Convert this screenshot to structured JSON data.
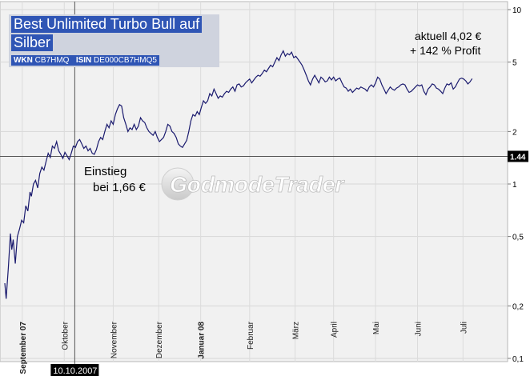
{
  "header": {
    "title_line1": "Best Unlimited Turbo Bull auf",
    "title_line2": "Silber",
    "wkn_label": "WKN",
    "wkn_value": "CB7HMQ",
    "isin_label": "ISIN",
    "isin_value": "DE000CB7HMQ5"
  },
  "annotations": {
    "current_line1": "aktuell 4,02 €",
    "current_line2": "+ 142 % Profit",
    "entry_line1": "Einstieg",
    "entry_line2": "bei 1,66 €"
  },
  "watermark": "GodmodeTrader",
  "colors": {
    "line": "#1a1a6e",
    "plot_bg": "#f1f1f1",
    "title_bg": "#2f55b5",
    "marker_bg": "#000000"
  },
  "chart_data": {
    "type": "line",
    "y_scale": "log",
    "ylim": [
      0.1,
      10
    ],
    "y_ticks": [
      {
        "value": 10,
        "label": "10"
      },
      {
        "value": 5,
        "label": "5"
      },
      {
        "value": 2,
        "label": "2"
      },
      {
        "value": 1,
        "label": "1"
      },
      {
        "value": 0.5,
        "label": "0,5"
      },
      {
        "value": 0.2,
        "label": "0,2"
      },
      {
        "value": 0.1,
        "label": "0,1"
      }
    ],
    "x_ticks": [
      {
        "t": 5,
        "label": "September 07",
        "bold": true
      },
      {
        "t": 17,
        "label": "Oktober",
        "bold": false
      },
      {
        "t": 31,
        "label": "November",
        "bold": false
      },
      {
        "t": 44,
        "label": "Dezember",
        "bold": false
      },
      {
        "t": 56,
        "label": "Januar 08",
        "bold": true
      },
      {
        "t": 70,
        "label": "Februar",
        "bold": false
      },
      {
        "t": 83,
        "label": "März",
        "bold": false
      },
      {
        "t": 94,
        "label": "April",
        "bold": false
      },
      {
        "t": 106,
        "label": "Mai",
        "bold": false
      },
      {
        "t": 118,
        "label": "Juni",
        "bold": false
      },
      {
        "t": 131,
        "label": "Juli",
        "bold": false
      }
    ],
    "x_range": [
      0,
      141
    ],
    "marker_date": {
      "t": 20,
      "label": "10.10.2007"
    },
    "marker_price": {
      "value": 1.44,
      "label": "1.44"
    },
    "series": [
      {
        "values": [
          [
            0,
            0.27
          ],
          [
            0.4,
            0.22
          ],
          [
            1,
            0.33
          ],
          [
            1.6,
            0.52
          ],
          [
            2,
            0.42
          ],
          [
            2.4,
            0.48
          ],
          [
            3,
            0.35
          ],
          [
            3.6,
            0.5
          ],
          [
            4.2,
            0.55
          ],
          [
            4.8,
            0.62
          ],
          [
            5.4,
            0.6
          ],
          [
            6,
            0.75
          ],
          [
            6.6,
            0.7
          ],
          [
            7.2,
            0.9
          ],
          [
            7.6,
            0.85
          ],
          [
            8.2,
            1.0
          ],
          [
            8.8,
            1.05
          ],
          [
            9.4,
            0.95
          ],
          [
            10,
            1.15
          ],
          [
            10.6,
            1.25
          ],
          [
            11.2,
            1.2
          ],
          [
            11.8,
            1.35
          ],
          [
            12.4,
            1.5
          ],
          [
            13,
            1.42
          ],
          [
            13.6,
            1.65
          ],
          [
            14.2,
            1.6
          ],
          [
            14.8,
            1.75
          ],
          [
            15.4,
            1.55
          ],
          [
            16,
            1.48
          ],
          [
            16.6,
            1.4
          ],
          [
            17.2,
            1.52
          ],
          [
            17.8,
            1.45
          ],
          [
            18.4,
            1.38
          ],
          [
            19,
            1.5
          ],
          [
            19.6,
            1.65
          ],
          [
            20.2,
            1.62
          ],
          [
            20.8,
            1.75
          ],
          [
            21.4,
            1.8
          ],
          [
            22,
            1.7
          ],
          [
            22.6,
            1.6
          ],
          [
            23.2,
            1.65
          ],
          [
            23.8,
            1.55
          ],
          [
            24.4,
            1.6
          ],
          [
            25,
            1.5
          ],
          [
            25.6,
            1.48
          ],
          [
            26.2,
            1.58
          ],
          [
            26.8,
            1.75
          ],
          [
            27.4,
            1.85
          ],
          [
            28,
            1.8
          ],
          [
            28.6,
            2.0
          ],
          [
            29.2,
            2.2
          ],
          [
            29.8,
            2.1
          ],
          [
            30.4,
            2.3
          ],
          [
            31,
            2.2
          ],
          [
            31.6,
            2.5
          ],
          [
            32.2,
            2.7
          ],
          [
            32.8,
            2.85
          ],
          [
            33.4,
            2.8
          ],
          [
            34,
            2.4
          ],
          [
            34.6,
            2.2
          ],
          [
            35.2,
            2.0
          ],
          [
            35.8,
            2.1
          ],
          [
            36.4,
            2.05
          ],
          [
            37,
            2.2
          ],
          [
            37.6,
            2.05
          ],
          [
            38.2,
            2.15
          ],
          [
            38.8,
            2.4
          ],
          [
            39.4,
            2.3
          ],
          [
            40,
            2.25
          ],
          [
            40.6,
            2.1
          ],
          [
            41.2,
            2.0
          ],
          [
            41.8,
            1.95
          ],
          [
            42.4,
            1.9
          ],
          [
            43,
            2.0
          ],
          [
            43.6,
            1.85
          ],
          [
            44.2,
            1.75
          ],
          [
            44.8,
            1.8
          ],
          [
            45.4,
            1.85
          ],
          [
            46,
            2.0
          ],
          [
            46.6,
            2.2
          ],
          [
            47.2,
            2.15
          ],
          [
            47.8,
            2.0
          ],
          [
            48.4,
            1.95
          ],
          [
            49,
            1.85
          ],
          [
            49.6,
            1.7
          ],
          [
            50.2,
            1.65
          ],
          [
            50.8,
            1.62
          ],
          [
            51.4,
            1.7
          ],
          [
            52,
            1.78
          ],
          [
            52.6,
            2.0
          ],
          [
            53.2,
            2.3
          ],
          [
            53.8,
            2.5
          ],
          [
            54.4,
            2.45
          ],
          [
            55,
            2.6
          ],
          [
            55.6,
            2.5
          ],
          [
            56.2,
            2.75
          ],
          [
            56.8,
            3.0
          ],
          [
            57.4,
            2.9
          ],
          [
            58,
            3.0
          ],
          [
            58.6,
            3.3
          ],
          [
            59.2,
            3.2
          ],
          [
            59.8,
            3.5
          ],
          [
            60.4,
            3.3
          ],
          [
            61,
            3.1
          ],
          [
            61.6,
            3.2
          ],
          [
            62.2,
            3.15
          ],
          [
            62.8,
            3.3
          ],
          [
            63.4,
            3.4
          ],
          [
            64,
            3.35
          ],
          [
            64.6,
            3.5
          ],
          [
            65.2,
            3.6
          ],
          [
            65.8,
            3.4
          ],
          [
            66.4,
            3.7
          ],
          [
            67,
            3.75
          ],
          [
            67.6,
            3.6
          ],
          [
            68.2,
            3.65
          ],
          [
            68.8,
            3.8
          ],
          [
            69.4,
            3.9
          ],
          [
            70,
            4.0
          ],
          [
            70.6,
            3.8
          ],
          [
            71.2,
            3.95
          ],
          [
            71.8,
            4.1
          ],
          [
            72.4,
            4.2
          ],
          [
            73,
            4.15
          ],
          [
            73.6,
            4.3
          ],
          [
            74.2,
            4.5
          ],
          [
            74.8,
            4.4
          ],
          [
            75.4,
            4.6
          ],
          [
            76,
            4.8
          ],
          [
            76.6,
            4.7
          ],
          [
            77.2,
            5.0
          ],
          [
            77.8,
            5.3
          ],
          [
            78.4,
            5.1
          ],
          [
            79,
            5.5
          ],
          [
            79.6,
            5.8
          ],
          [
            80.2,
            5.4
          ],
          [
            80.8,
            5.6
          ],
          [
            81.4,
            5.5
          ],
          [
            82,
            5.7
          ],
          [
            82.6,
            5.3
          ],
          [
            83.2,
            5.4
          ],
          [
            83.8,
            5.2
          ],
          [
            84.4,
            5.0
          ],
          [
            85,
            4.8
          ],
          [
            85.6,
            4.5
          ],
          [
            86.2,
            4.2
          ],
          [
            86.8,
            3.9
          ],
          [
            87.4,
            3.7
          ],
          [
            88,
            4.0
          ],
          [
            88.6,
            4.2
          ],
          [
            89.2,
            4.0
          ],
          [
            89.8,
            3.8
          ],
          [
            90.4,
            4.1
          ],
          [
            91,
            4.0
          ],
          [
            91.6,
            3.85
          ],
          [
            92.2,
            3.9
          ],
          [
            92.8,
            4.1
          ],
          [
            93.4,
            3.95
          ],
          [
            94,
            4.1
          ],
          [
            94.6,
            3.9
          ],
          [
            95.2,
            4.0
          ],
          [
            95.8,
            4.05
          ],
          [
            96.4,
            3.8
          ],
          [
            97,
            3.6
          ],
          [
            97.6,
            3.55
          ],
          [
            98.2,
            3.4
          ],
          [
            98.8,
            3.5
          ],
          [
            99.4,
            3.35
          ],
          [
            100,
            3.45
          ],
          [
            100.6,
            3.55
          ],
          [
            101.2,
            3.5
          ],
          [
            101.8,
            3.6
          ],
          [
            102.4,
            3.55
          ],
          [
            103,
            3.5
          ],
          [
            103.6,
            3.4
          ],
          [
            104.2,
            3.6
          ],
          [
            104.8,
            3.7
          ],
          [
            105.4,
            3.6
          ],
          [
            106,
            3.8
          ],
          [
            106.6,
            4.1
          ],
          [
            107.2,
            4.0
          ],
          [
            107.8,
            3.7
          ],
          [
            108.4,
            3.5
          ],
          [
            109,
            3.3
          ],
          [
            109.6,
            3.45
          ],
          [
            110.2,
            3.6
          ],
          [
            110.8,
            3.5
          ],
          [
            111.4,
            3.45
          ],
          [
            112,
            3.55
          ],
          [
            112.6,
            3.6
          ],
          [
            113.2,
            3.7
          ],
          [
            113.8,
            3.75
          ],
          [
            114.4,
            3.7
          ],
          [
            115,
            3.5
          ],
          [
            115.6,
            3.35
          ],
          [
            116.2,
            3.4
          ],
          [
            116.8,
            3.5
          ],
          [
            117.4,
            3.6
          ],
          [
            118,
            3.7
          ],
          [
            118.6,
            3.65
          ],
          [
            119.2,
            3.7
          ],
          [
            119.8,
            3.4
          ],
          [
            120.4,
            3.25
          ],
          [
            121,
            3.5
          ],
          [
            121.6,
            3.6
          ],
          [
            122.2,
            3.75
          ],
          [
            122.8,
            3.7
          ],
          [
            123.4,
            3.55
          ],
          [
            124,
            3.5
          ],
          [
            124.6,
            3.4
          ],
          [
            125.2,
            3.3
          ],
          [
            125.8,
            3.55
          ],
          [
            126.4,
            3.75
          ],
          [
            127,
            3.7
          ],
          [
            127.6,
            3.8
          ],
          [
            128.2,
            3.5
          ],
          [
            128.8,
            3.6
          ],
          [
            129.4,
            3.8
          ],
          [
            130,
            4.0
          ],
          [
            130.6,
            4.05
          ],
          [
            131.2,
            4.0
          ],
          [
            131.8,
            3.9
          ],
          [
            132.4,
            3.75
          ],
          [
            133,
            3.85
          ],
          [
            133.6,
            4.02
          ]
        ]
      }
    ]
  }
}
